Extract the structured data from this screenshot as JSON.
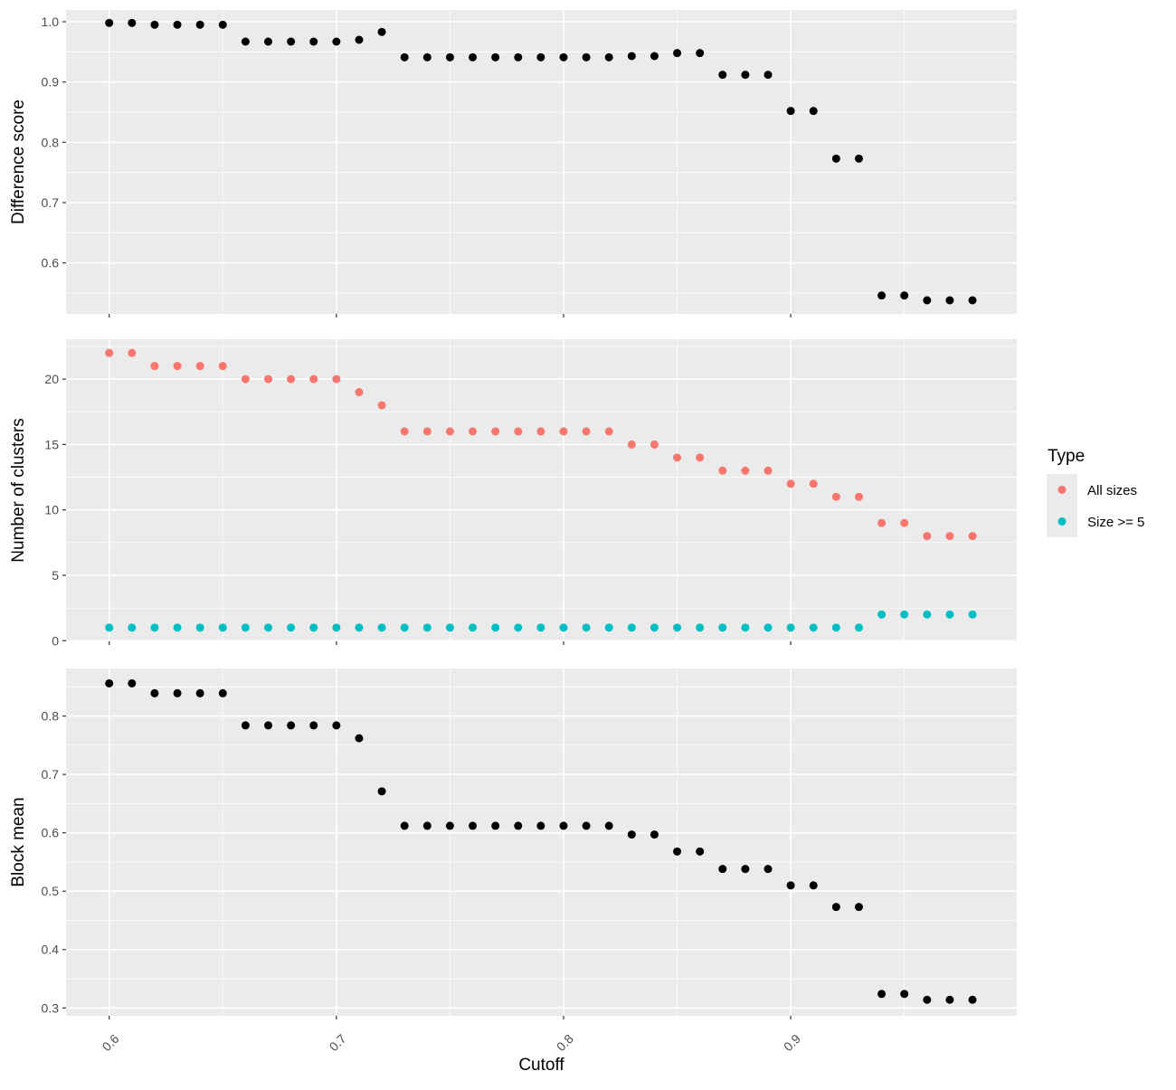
{
  "chart_data": [
    {
      "type": "scatter",
      "panel": "top",
      "xlabel": "Cutoff",
      "ylabel": "Difference score",
      "xlim": [
        0.581,
        0.9995
      ],
      "ylim": [
        0.5155,
        1.0195
      ],
      "xticks": [
        0.6,
        0.7,
        0.8,
        0.9
      ],
      "xtick_labels": [
        "0.6",
        "0.7",
        "0.8",
        "0.9"
      ],
      "yticks": [
        0.6,
        0.7,
        0.8,
        0.9,
        1.0
      ],
      "ytick_labels": [
        "0.6",
        "0.7",
        "0.8",
        "0.9",
        "1.0"
      ],
      "grid": true,
      "series": [
        {
          "color": "#000000",
          "x": [
            0.6,
            0.61,
            0.62,
            0.63,
            0.64,
            0.65,
            0.66,
            0.67,
            0.68,
            0.69,
            0.7,
            0.71,
            0.72,
            0.73,
            0.74,
            0.75,
            0.76,
            0.77,
            0.78,
            0.79,
            0.8,
            0.81,
            0.82,
            0.83,
            0.84,
            0.85,
            0.86,
            0.87,
            0.88,
            0.89,
            0.9,
            0.91,
            0.92,
            0.93,
            0.94,
            0.95,
            0.96,
            0.97,
            0.98
          ],
          "y": [
            0.998,
            0.998,
            0.995,
            0.995,
            0.995,
            0.995,
            0.967,
            0.967,
            0.967,
            0.967,
            0.967,
            0.97,
            0.983,
            0.941,
            0.941,
            0.941,
            0.941,
            0.941,
            0.941,
            0.941,
            0.941,
            0.941,
            0.941,
            0.943,
            0.943,
            0.948,
            0.948,
            0.912,
            0.912,
            0.912,
            0.852,
            0.852,
            0.773,
            0.773,
            0.546,
            0.546,
            0.538,
            0.538,
            0.538
          ]
        }
      ]
    },
    {
      "type": "scatter",
      "panel": "middle",
      "xlabel": "Cutoff",
      "ylabel": "Number of clusters",
      "xlim": [
        0.581,
        0.9995
      ],
      "ylim": [
        -0.05,
        23.05
      ],
      "xticks": [
        0.6,
        0.7,
        0.8,
        0.9
      ],
      "xtick_labels": [
        "0.6",
        "0.7",
        "0.8",
        "0.9"
      ],
      "yticks": [
        0,
        5,
        10,
        15,
        20
      ],
      "ytick_labels": [
        "0",
        "5",
        "10",
        "15",
        "20"
      ],
      "grid": true,
      "legend": {
        "title": "Type",
        "placement": "right"
      },
      "series": [
        {
          "name": "All sizes",
          "color": "#f8766d",
          "x": [
            0.6,
            0.61,
            0.62,
            0.63,
            0.64,
            0.65,
            0.66,
            0.67,
            0.68,
            0.69,
            0.7,
            0.71,
            0.72,
            0.73,
            0.74,
            0.75,
            0.76,
            0.77,
            0.78,
            0.79,
            0.8,
            0.81,
            0.82,
            0.83,
            0.84,
            0.85,
            0.86,
            0.87,
            0.88,
            0.89,
            0.9,
            0.91,
            0.92,
            0.93,
            0.94,
            0.95,
            0.96,
            0.97,
            0.98
          ],
          "y": [
            22,
            22,
            21,
            21,
            21,
            21,
            20,
            20,
            20,
            20,
            20,
            19,
            18,
            16,
            16,
            16,
            16,
            16,
            16,
            16,
            16,
            16,
            16,
            15,
            15,
            14,
            14,
            13,
            13,
            13,
            12,
            12,
            11,
            11,
            9,
            9,
            8,
            8,
            8
          ]
        },
        {
          "name": "Size >= 5",
          "color": "#00bfc4",
          "x": [
            0.6,
            0.61,
            0.62,
            0.63,
            0.64,
            0.65,
            0.66,
            0.67,
            0.68,
            0.69,
            0.7,
            0.71,
            0.72,
            0.73,
            0.74,
            0.75,
            0.76,
            0.77,
            0.78,
            0.79,
            0.8,
            0.81,
            0.82,
            0.83,
            0.84,
            0.85,
            0.86,
            0.87,
            0.88,
            0.89,
            0.9,
            0.91,
            0.92,
            0.93,
            0.94,
            0.95,
            0.96,
            0.97,
            0.98
          ],
          "y": [
            1,
            1,
            1,
            1,
            1,
            1,
            1,
            1,
            1,
            1,
            1,
            1,
            1,
            1,
            1,
            1,
            1,
            1,
            1,
            1,
            1,
            1,
            1,
            1,
            1,
            1,
            1,
            1,
            1,
            1,
            1,
            1,
            1,
            1,
            2,
            2,
            2,
            2,
            2
          ]
        }
      ]
    },
    {
      "type": "scatter",
      "panel": "bottom",
      "xlabel": "Cutoff",
      "ylabel": "Block mean",
      "xlim": [
        0.581,
        0.9995
      ],
      "ylim": [
        0.2865,
        0.8815
      ],
      "xticks": [
        0.6,
        0.7,
        0.8,
        0.9
      ],
      "xtick_labels": [
        "0.6",
        "0.7",
        "0.8",
        "0.9"
      ],
      "yticks": [
        0.3,
        0.4,
        0.5,
        0.6,
        0.7,
        0.8
      ],
      "ytick_labels": [
        "0.3",
        "0.4",
        "0.5",
        "0.6",
        "0.7",
        "0.8"
      ],
      "grid": true,
      "series": [
        {
          "color": "#000000",
          "x": [
            0.6,
            0.61,
            0.62,
            0.63,
            0.64,
            0.65,
            0.66,
            0.67,
            0.68,
            0.69,
            0.7,
            0.71,
            0.72,
            0.73,
            0.74,
            0.75,
            0.76,
            0.77,
            0.78,
            0.79,
            0.8,
            0.81,
            0.82,
            0.83,
            0.84,
            0.85,
            0.86,
            0.87,
            0.88,
            0.89,
            0.9,
            0.91,
            0.92,
            0.93,
            0.94,
            0.95,
            0.96,
            0.97,
            0.98
          ],
          "y": [
            0.856,
            0.856,
            0.839,
            0.839,
            0.839,
            0.839,
            0.784,
            0.784,
            0.784,
            0.784,
            0.784,
            0.762,
            0.671,
            0.612,
            0.612,
            0.612,
            0.612,
            0.612,
            0.612,
            0.612,
            0.612,
            0.612,
            0.612,
            0.597,
            0.597,
            0.568,
            0.568,
            0.538,
            0.538,
            0.538,
            0.51,
            0.51,
            0.473,
            0.473,
            0.324,
            0.324,
            0.314,
            0.314,
            0.314
          ]
        }
      ]
    }
  ],
  "colors": {
    "panel_background": "#ebebeb",
    "gridline": "#ffffff",
    "tick_text": "#4d4d4d",
    "point_black": "#000000"
  }
}
